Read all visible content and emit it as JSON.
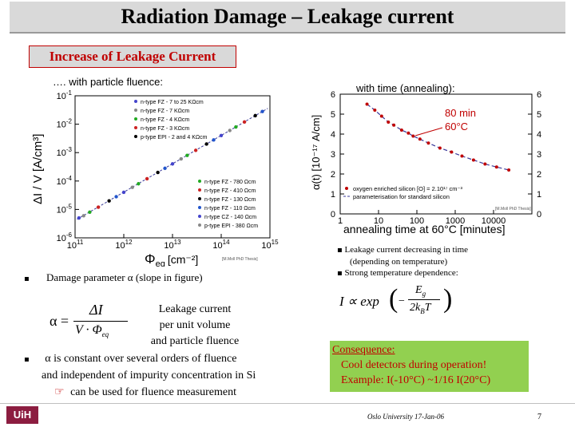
{
  "slide": {
    "title": "Radiation Damage – Leakage current",
    "subtitle": "Increase of Leakage Current",
    "left_caption": "…. with particle fluence:",
    "right_caption": "with time (annealing):"
  },
  "left_chart": {
    "ylabel": "ΔI / V  [A/cm³]",
    "xlabel_main": "Φ",
    "xlabel_sub": "eq",
    "xlabel_unit": "[cm⁻²]",
    "credit": "[M.Moll PhD Thesis]",
    "y_ticks": [
      {
        "base": "10",
        "exp": "-1"
      },
      {
        "base": "10",
        "exp": "-2"
      },
      {
        "base": "10",
        "exp": "-3"
      },
      {
        "base": "10",
        "exp": "-4"
      },
      {
        "base": "10",
        "exp": "-5"
      },
      {
        "base": "10",
        "exp": "-6"
      }
    ],
    "x_ticks": [
      {
        "base": "10",
        "exp": "11"
      },
      {
        "base": "10",
        "exp": "12"
      },
      {
        "base": "10",
        "exp": "13"
      },
      {
        "base": "10",
        "exp": "14"
      },
      {
        "base": "10",
        "exp": "15"
      }
    ],
    "legend_top": [
      "n-type FZ - 7 to 25 KΩcm",
      "n-type FZ - 7 KΩcm",
      "n-type FZ - 4 KΩcm",
      "n-type FZ - 3 KΩcm",
      "p-type EPI - 2 and 4 KΩcm"
    ],
    "legend_bottom": [
      "n-type FZ - 780 Ωcm",
      "n-type FZ - 410 Ωcm",
      "n-type FZ - 130 Ωcm",
      "n-type FZ - 110 Ωcm",
      "n-type CZ - 140 Ωcm",
      "p-type EPI - 380 Ωcm"
    ]
  },
  "right_chart": {
    "ylabel": "α(t) [10⁻¹⁷ A/cm]",
    "xlabel": "annealing time at 60°C [minutes]",
    "y_ticks": [
      "0",
      "1",
      "2",
      "3",
      "4",
      "5",
      "6"
    ],
    "x_ticks": [
      "1",
      "10",
      "100",
      "1000",
      "10000"
    ],
    "annotation_time": "80 min",
    "annotation_temp": "60°C",
    "legend": [
      "oxygen enriched silicon [O] = 2.10¹⁷ cm⁻³",
      "parameterisation for standard silicon"
    ],
    "credit": "[M.Moll PhD Thesis]"
  },
  "notes": {
    "decreasing_1": "Leakage current decreasing in time",
    "decreasing_2": "(depending on temperature)",
    "strong_temp": "Strong temperature dependence:",
    "damage_param": "Damage parameter  α  (slope in figure)",
    "alpha_eq": "α =",
    "per_volume_1": "Leakage current",
    "per_volume_2": "per unit volume",
    "per_volume_3": "and particle fluence",
    "constant_1": "α is constant over several orders of fluence",
    "constant_2": "and independent of impurity concentration in Si",
    "constant_3": "can be used for fluence measurement"
  },
  "consequence": {
    "heading": "Consequence:",
    "line1": "Cool detectors during operation!",
    "line2": "Example:  I(-10°C) ~1/16 I(20°C)"
  },
  "footer": {
    "center": "Oslo University 17-Jan-06",
    "page": "7",
    "logo": "UiH"
  },
  "chart_data": [
    {
      "type": "scatter",
      "x_scale": "log",
      "y_scale": "log",
      "xlim": [
        100000000000.0,
        1000000000000000.0
      ],
      "ylim": [
        1e-06,
        0.1
      ],
      "points": [
        [
          120000000000.0,
          5e-06
        ],
        [
          150000000000.0,
          6e-06
        ],
        [
          200000000000.0,
          8e-06
        ],
        [
          300000000000.0,
          1.2e-05
        ],
        [
          500000000000.0,
          2e-05
        ],
        [
          700000000000.0,
          2.8e-05
        ],
        [
          1000000000000.0,
          4e-05
        ],
        [
          1500000000000.0,
          6e-05
        ],
        [
          2000000000000.0,
          8e-05
        ],
        [
          3000000000000.0,
          0.00012
        ],
        [
          5000000000000.0,
          0.0002
        ],
        [
          7000000000000.0,
          0.00028
        ],
        [
          10000000000000.0,
          0.0004
        ],
        [
          15000000000000.0,
          0.0006
        ],
        [
          20000000000000.0,
          0.0008
        ],
        [
          30000000000000.0,
          0.0012
        ],
        [
          50000000000000.0,
          0.002
        ],
        [
          70000000000000.0,
          0.0028
        ],
        [
          100000000000000.0,
          0.004
        ],
        [
          150000000000000.0,
          0.006
        ],
        [
          200000000000000.0,
          0.008
        ],
        [
          300000000000000.0,
          0.012
        ],
        [
          500000000000000.0,
          0.02
        ],
        [
          700000000000000.0,
          0.028
        ]
      ]
    },
    {
      "type": "line",
      "x_scale": "log",
      "xlim": [
        1,
        100000
      ],
      "ylim": [
        0,
        6
      ],
      "points": [
        [
          5,
          5.5
        ],
        [
          8,
          5.2
        ],
        [
          12,
          4.9
        ],
        [
          18,
          4.6
        ],
        [
          25,
          4.45
        ],
        [
          40,
          4.2
        ],
        [
          60,
          4.05
        ],
        [
          80,
          3.9
        ],
        [
          120,
          3.75
        ],
        [
          200,
          3.55
        ],
        [
          400,
          3.3
        ],
        [
          800,
          3.1
        ],
        [
          1500,
          2.9
        ],
        [
          3000,
          2.7
        ],
        [
          6000,
          2.5
        ],
        [
          12000,
          2.35
        ],
        [
          25000,
          2.2
        ]
      ]
    }
  ]
}
